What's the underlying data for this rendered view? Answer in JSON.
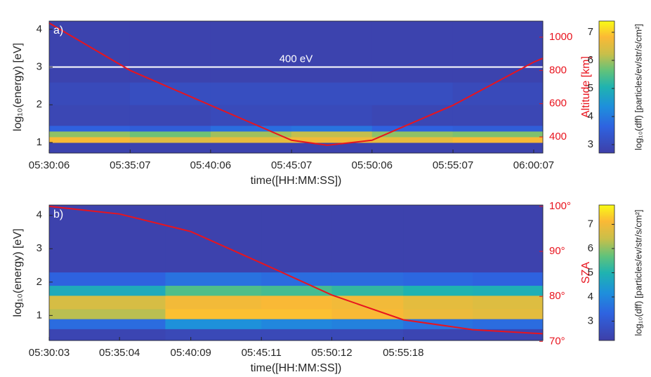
{
  "chart_data": [
    {
      "type": "heatmap",
      "panel_label": "a)",
      "ylabel": "log₁₀(energy) [eV]",
      "y2label": "Altitude [km]",
      "xlabel": "time([HH:MM:SS])",
      "xlim": [
        6,
        1841
      ],
      "xticks": [
        {
          "value": 6,
          "label": "05:30:06"
        },
        {
          "value": 307,
          "label": "05:35:07"
        },
        {
          "value": 606,
          "label": "05:40:06"
        },
        {
          "value": 907,
          "label": "05:45:07"
        },
        {
          "value": 1206,
          "label": "05:50:06"
        },
        {
          "value": 1507,
          "label": "05:55:07"
        },
        {
          "value": 1807,
          "label": "06:00:07"
        }
      ],
      "ylim": [
        0.72,
        4.22
      ],
      "yticks": [
        1,
        2,
        3,
        4
      ],
      "y2lim": [
        303,
        1097
      ],
      "y2ticks": [
        400,
        600,
        800,
        1000
      ],
      "x_edges": [
        6,
        306,
        606,
        906,
        1206,
        1506,
        1841
      ],
      "y_edges": [
        0.72,
        1.0,
        1.15,
        1.3,
        1.45,
        2.0,
        2.6,
        4.22
      ],
      "z": [
        [
          2.8,
          2.8,
          2.8,
          2.8,
          2.8,
          2.8
        ],
        [
          6.8,
          6.5,
          6.6,
          6.7,
          6.6,
          6.8
        ],
        [
          5.9,
          5.7,
          6.0,
          6.2,
          5.9,
          5.8
        ],
        [
          3.6,
          3.5,
          3.8,
          3.9,
          3.6,
          3.5
        ],
        [
          2.9,
          2.9,
          3.0,
          3.0,
          2.9,
          2.9
        ],
        [
          3.0,
          3.1,
          3.1,
          3.1,
          3.1,
          3.0
        ],
        [
          2.8,
          2.8,
          2.8,
          2.8,
          2.8,
          2.8
        ]
      ],
      "colorbar": {
        "label": "log₁₀(dff) [particles/ev/str/s/cm²]",
        "lim": [
          2.7,
          7.4
        ],
        "ticks": [
          3,
          4,
          5,
          6,
          7
        ]
      },
      "line": {
        "axis": "y2",
        "color": "#e8141e",
        "x": [
          6,
          307,
          606,
          907,
          1040,
          1206,
          1507,
          1807,
          1841
        ],
        "values": [
          1085,
          800,
          590,
          380,
          350,
          380,
          590,
          850,
          873
        ]
      },
      "annotation": {
        "text": "400 eV",
        "y": 3,
        "color": "#ffffff"
      }
    },
    {
      "type": "heatmap",
      "panel_label": "b)",
      "ylabel": "log₁₀(energy) [eV]",
      "y2label": "SZA",
      "xlabel": "time([HH:MM:SS])",
      "xlim": [
        3,
        2115
      ],
      "xticks": [
        {
          "value": 3,
          "label": "05:30:03"
        },
        {
          "value": 304,
          "label": "05:35:04"
        },
        {
          "value": 609,
          "label": "05:40:09"
        },
        {
          "value": 911,
          "label": "05:45:11"
        },
        {
          "value": 1212,
          "label": "05:50:12"
        },
        {
          "value": 1518,
          "label": "05:55:18"
        }
      ],
      "ylim": [
        0.25,
        4.31
      ],
      "yticks": [
        1,
        2,
        3,
        4
      ],
      "y2lim": [
        70.2,
        100.3
      ],
      "y2ticks": [
        {
          "value": 70,
          "label": "70°"
        },
        {
          "value": 80,
          "label": "80°"
        },
        {
          "value": 90,
          "label": "90°"
        },
        {
          "value": 100,
          "label": "100°"
        }
      ],
      "x_edges": [
        3,
        500,
        911,
        1212,
        1518,
        1815,
        2115
      ],
      "y_edges": [
        0.25,
        0.6,
        0.9,
        1.2,
        1.6,
        1.9,
        2.3,
        4.31
      ],
      "z": [
        [
          2.4,
          2.5,
          2.5,
          2.5,
          2.4,
          2.4
        ],
        [
          3.5,
          4.2,
          4.0,
          3.9,
          3.6,
          3.5
        ],
        [
          6.3,
          7.2,
          7.2,
          7.1,
          6.9,
          6.8
        ],
        [
          6.6,
          7.0,
          7.1,
          7.0,
          6.8,
          6.7
        ],
        [
          4.8,
          5.5,
          5.4,
          5.2,
          5.0,
          4.9
        ],
        [
          3.3,
          3.6,
          3.5,
          3.5,
          3.4,
          3.3
        ],
        [
          2.3,
          2.3,
          2.3,
          2.3,
          2.3,
          2.3
        ]
      ],
      "colorbar": {
        "label": "log₁₀(dff) [particles/ev/str/s/cm²]",
        "lim": [
          2.2,
          7.8
        ],
        "ticks": [
          3,
          4,
          5,
          6,
          7
        ]
      },
      "line": {
        "axis": "y2",
        "color": "#e8141e",
        "x": [
          3,
          304,
          609,
          911,
          1212,
          1518,
          1815,
          2115
        ],
        "values": [
          100,
          98.3,
          94.4,
          87.4,
          80.3,
          74.8,
          72.6,
          71.7
        ]
      }
    }
  ]
}
